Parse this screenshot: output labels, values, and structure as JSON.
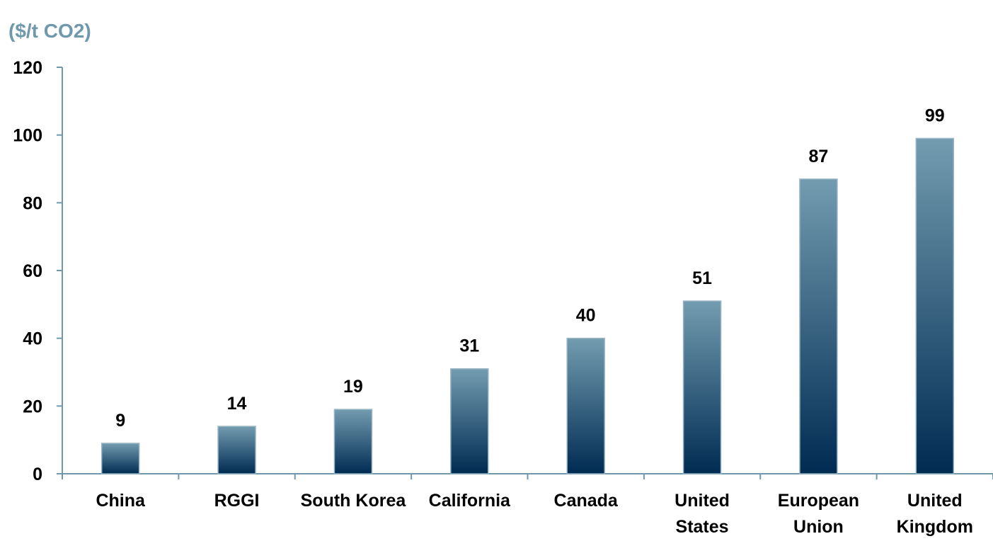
{
  "chart_data": {
    "type": "bar",
    "ylabel": "($/t CO2)",
    "categories": [
      "China",
      "RGGI",
      "South Korea",
      "California",
      "Canada",
      "United States",
      "European Union",
      "United Kingdom"
    ],
    "category_lines": [
      [
        "China"
      ],
      [
        "RGGI"
      ],
      [
        "South Korea"
      ],
      [
        "California"
      ],
      [
        "Canada"
      ],
      [
        "United",
        "States"
      ],
      [
        "European",
        "Union"
      ],
      [
        "United",
        "Kingdom"
      ]
    ],
    "values": [
      9,
      14,
      19,
      31,
      40,
      51,
      87,
      99
    ],
    "data_labels": [
      "9",
      "14",
      "19",
      "31",
      "40",
      "51",
      "87",
      "99"
    ],
    "ylim": [
      0,
      120
    ],
    "yticks": [
      "0",
      "20",
      "40",
      "60",
      "80",
      "100",
      "120"
    ],
    "grid": false,
    "legend": "none"
  },
  "colors": {
    "bar_top": "#739cb0",
    "bar_bottom": "#002b52",
    "axis": "#6f98ad",
    "unit_label": "#6f98ad"
  }
}
